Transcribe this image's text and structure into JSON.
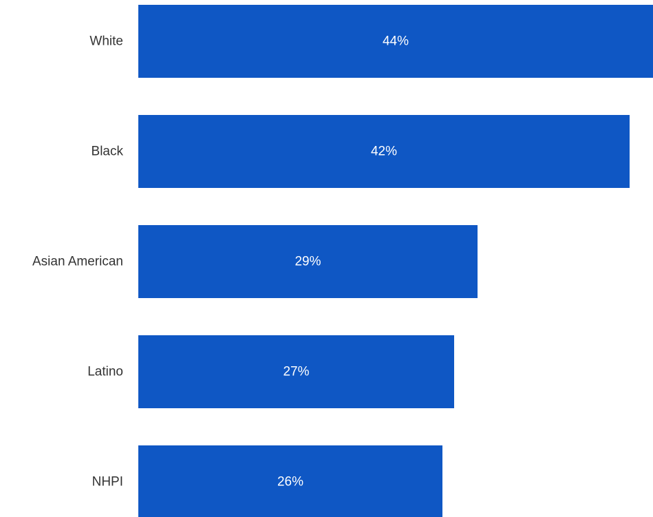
{
  "chart_data": {
    "type": "bar",
    "orientation": "horizontal",
    "categories": [
      "White",
      "Black",
      "Asian American",
      "Latino",
      "NHPI"
    ],
    "values": [
      44,
      42,
      29,
      27,
      26
    ],
    "value_labels": [
      "44%",
      "42%",
      "29%",
      "27%",
      "26%"
    ],
    "unit": "%",
    "bar_color": "#0f57c4",
    "grid": false,
    "legend": "none"
  }
}
